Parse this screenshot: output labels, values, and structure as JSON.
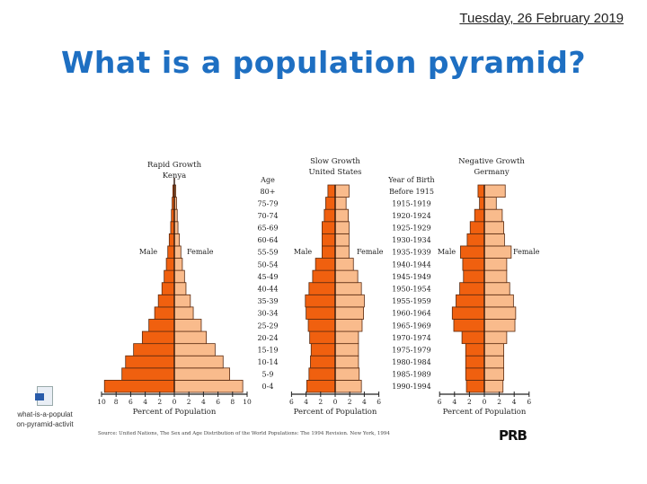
{
  "slide": {
    "date": "Tuesday, 26 February 2019",
    "title": "What is a population pyramid?",
    "source": "Source: United Nations, The Sex and Age Distribution of the World Populations: The 1994 Revision. New York, 1994",
    "logo": "PRB"
  },
  "file_icon": {
    "icon": "word-document-icon",
    "label_line1": "what-is-a-populat",
    "label_line2": "on-pyramid-activit"
  },
  "colors": {
    "male": "#f0600f",
    "female": "#f9bb8c",
    "outline": "#5a2a10"
  },
  "labels": {
    "age_header": "Age",
    "birth_header_line1": "Year of Birth",
    "male": "Male",
    "female": "Female",
    "xlabel": "Percent of Population"
  },
  "chart_data": [
    {
      "type": "bar",
      "title": "Rapid Growth",
      "subtitle": "Kenya",
      "categories": [
        "0-4",
        "5-9",
        "10-14",
        "15-19",
        "20-24",
        "25-29",
        "30-34",
        "35-39",
        "40-44",
        "45-49",
        "50-54",
        "55-59",
        "60-64",
        "65-69",
        "70-74",
        "75-79",
        "80+"
      ],
      "series": [
        {
          "name": "Male",
          "values": [
            9.6,
            7.2,
            6.7,
            5.6,
            4.4,
            3.5,
            2.7,
            2.2,
            1.7,
            1.4,
            1.1,
            0.9,
            0.7,
            0.5,
            0.4,
            0.3,
            0.2
          ]
        },
        {
          "name": "Female",
          "values": [
            9.4,
            7.6,
            6.7,
            5.6,
            4.4,
            3.7,
            2.6,
            2.2,
            1.6,
            1.4,
            1.1,
            0.9,
            0.7,
            0.5,
            0.4,
            0.3,
            0.2
          ]
        }
      ],
      "xticks": [
        "10",
        "8",
        "6",
        "4",
        "2",
        "0",
        "2",
        "4",
        "6",
        "8",
        "10"
      ],
      "xlim": [
        -10,
        10
      ],
      "xlabel": "Percent of Population"
    },
    {
      "type": "bar",
      "title": "Slow Growth",
      "subtitle": "United States",
      "categories": [
        "0-4",
        "5-9",
        "10-14",
        "15-19",
        "20-24",
        "25-29",
        "30-34",
        "35-39",
        "40-44",
        "45-49",
        "50-54",
        "55-59",
        "60-64",
        "65-69",
        "70-74",
        "75-79",
        "80+"
      ],
      "series": [
        {
          "name": "Male",
          "values": [
            3.9,
            3.6,
            3.4,
            3.3,
            3.5,
            3.7,
            4.0,
            4.1,
            3.6,
            3.1,
            2.7,
            1.8,
            1.8,
            1.8,
            1.5,
            1.3,
            1.0
          ]
        },
        {
          "name": "Female",
          "values": [
            3.6,
            3.3,
            3.2,
            3.2,
            3.2,
            3.7,
            3.9,
            4.0,
            3.6,
            3.1,
            2.5,
            1.9,
            1.9,
            1.9,
            1.8,
            1.5,
            1.9
          ]
        }
      ],
      "xticks": [
        "6",
        "4",
        "2",
        "0",
        "2",
        "4",
        "6"
      ],
      "xlim": [
        -6,
        6
      ],
      "xlabel": "Percent of Population"
    },
    {
      "type": "bar",
      "title": "Negative Growth",
      "subtitle": "Germany",
      "categories": [
        "1990-1994",
        "1985-1989",
        "1980-1984",
        "1975-1979",
        "1970-1974",
        "1965-1969",
        "1960-1964",
        "1955-1959",
        "1950-1954",
        "1945-1949",
        "1940-1944",
        "1935-1939",
        "1930-1934",
        "1925-1929",
        "1920-1924",
        "1915-1919",
        "Before 1915"
      ],
      "series": [
        {
          "name": "Male",
          "values": [
            2.4,
            2.5,
            2.5,
            2.5,
            3.0,
            4.1,
            4.3,
            3.8,
            3.3,
            2.8,
            2.9,
            3.2,
            2.3,
            1.9,
            1.3,
            0.65,
            0.85
          ]
        },
        {
          "name": "Female",
          "values": [
            2.5,
            2.6,
            2.6,
            2.6,
            3.0,
            4.1,
            4.2,
            3.9,
            3.4,
            3.0,
            3.0,
            3.6,
            2.7,
            2.6,
            2.4,
            1.6,
            2.8
          ]
        }
      ],
      "xticks": [
        "6",
        "4",
        "2",
        "0",
        "2",
        "4",
        "6"
      ],
      "xlim": [
        -6,
        6
      ],
      "xlabel": "Percent of Population"
    }
  ]
}
